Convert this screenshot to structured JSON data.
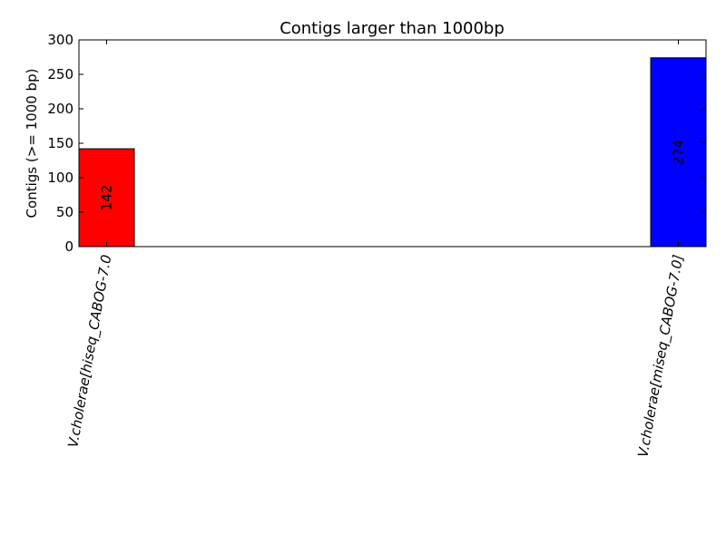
{
  "chart_data": {
    "type": "bar",
    "title": "Contigs larger than 1000bp",
    "ylabel": "Contigs (>= 1000 bp)",
    "xlabel": "",
    "categories": [
      "V.cholerae[hiseq_CABOG-7.0",
      "V.cholerae[miseq_CABOG-7.0]"
    ],
    "values": [
      142,
      274
    ],
    "value_labels": [
      "142",
      "274"
    ],
    "colors": [
      "#ff0000",
      "#0000ff"
    ],
    "ylim": [
      0,
      300
    ],
    "yticks": [
      0,
      50,
      100,
      150,
      200,
      250,
      300
    ],
    "ytick_labels": [
      "0",
      "50",
      "100",
      "150",
      "200",
      "250",
      "300"
    ],
    "grid": false,
    "legend": "none"
  }
}
